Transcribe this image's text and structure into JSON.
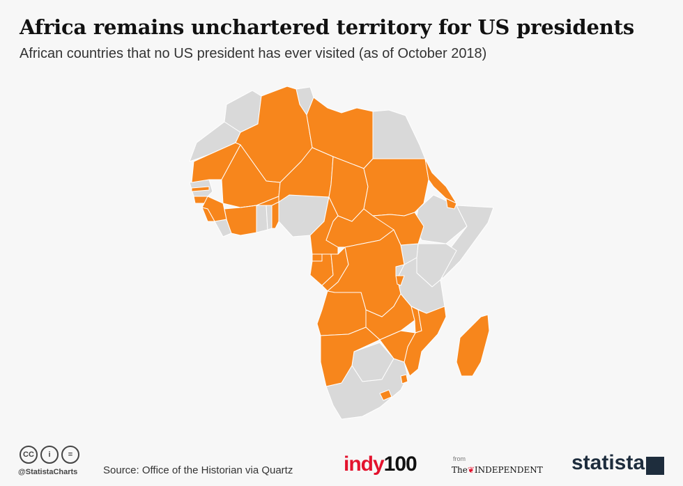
{
  "header": {
    "title": "Africa remains unchartered territory for US presidents",
    "subtitle": "African countries that no US president has ever visited (as of October 2018)"
  },
  "map": {
    "region": "Africa",
    "colors": {
      "never_visited": "#f7861c",
      "visited": "#d9d9d9",
      "background": "#f7f7f7",
      "border": "#ffffff"
    },
    "never_visited": [
      "Algeria",
      "Libya",
      "Mauritania",
      "Mali",
      "Niger",
      "Chad",
      "Sudan",
      "Eritrea",
      "Djibouti",
      "Gambia",
      "Guinea-Bissau",
      "Guinea",
      "Sierra Leone",
      "Côte d'Ivoire",
      "Burkina Faso",
      "Benin",
      "Cameroon",
      "Central African Republic",
      "South Sudan",
      "Equatorial Guinea",
      "Gabon",
      "Congo",
      "DR Congo",
      "Burundi",
      "Angola",
      "Zambia",
      "Malawi",
      "Mozambique",
      "Zimbabwe",
      "Namibia",
      "Madagascar",
      "Lesotho",
      "Eswatini"
    ],
    "visited": [
      "Morocco",
      "Tunisia",
      "Egypt",
      "Western Sahara",
      "Senegal",
      "Liberia",
      "Ghana",
      "Togo",
      "Nigeria",
      "Ethiopia",
      "Somalia",
      "Kenya",
      "Uganda",
      "Rwanda",
      "Tanzania",
      "Botswana",
      "South Africa"
    ]
  },
  "footer": {
    "cc_icons": [
      "CC",
      "i",
      "="
    ],
    "handle": "@StatistaCharts",
    "source": "Source: Office of the Historian via Quartz",
    "indy_text": "indy",
    "indy_num": "100",
    "from_label": "from",
    "independent_prefix": "The",
    "independent_name": "INDEPENDENT",
    "statista": "statista"
  }
}
